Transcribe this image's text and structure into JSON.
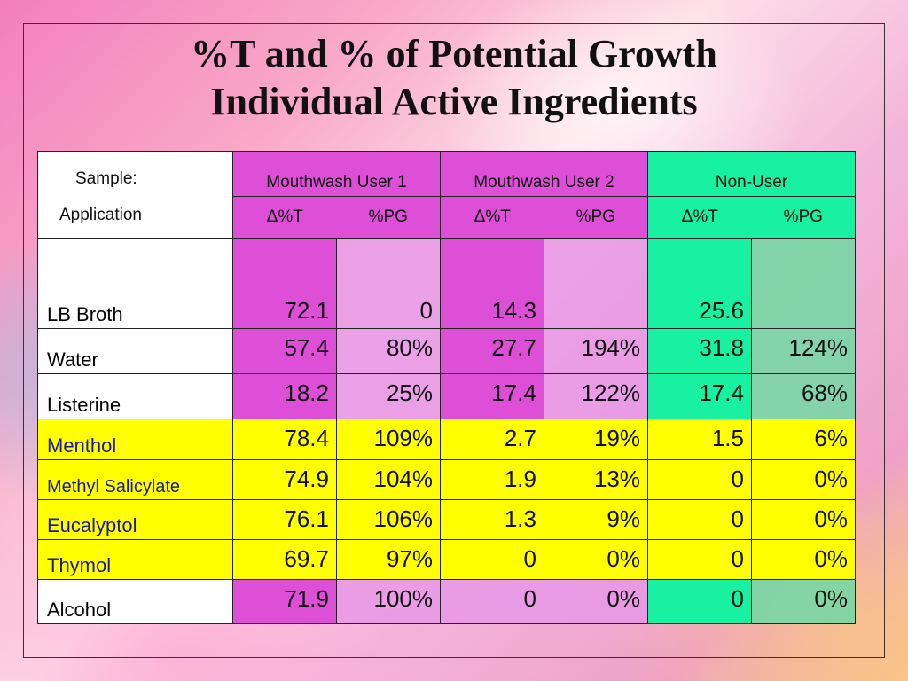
{
  "title": {
    "line1": "%T and % of Potential Growth",
    "line2": "Individual Active Ingredients"
  },
  "header": {
    "sample_label": "Sample:",
    "application_label": "Application",
    "groups": [
      "Mouthwash User 1",
      "Mouthwash User 2",
      "Non-User"
    ],
    "sub_cols": [
      "Δ%T",
      "%PG"
    ]
  },
  "rows": [
    {
      "name": "LB Broth",
      "values": [
        "72.1",
        "0",
        "14.3",
        "",
        "25.6",
        ""
      ]
    },
    {
      "name": "Water",
      "values": [
        "57.4",
        "80%",
        "27.7",
        "194%",
        "31.8",
        "124%"
      ]
    },
    {
      "name": "Listerine",
      "values": [
        "18.2",
        "25%",
        "17.4",
        "122%",
        "17.4",
        "68%"
      ]
    },
    {
      "name": "Menthol",
      "values": [
        "78.4",
        "109%",
        "2.7",
        "19%",
        "1.5",
        "6%"
      ]
    },
    {
      "name": "Methyl Salicylate",
      "values": [
        "74.9",
        "104%",
        "1.9",
        "13%",
        "0",
        "0%"
      ]
    },
    {
      "name": "Eucalyptol",
      "values": [
        "76.1",
        "106%",
        "1.3",
        "9%",
        "0",
        "0%"
      ]
    },
    {
      "name": "Thymol",
      "values": [
        "69.7",
        "97%",
        "0",
        "0%",
        "0",
        "0%"
      ]
    },
    {
      "name": "Alcohol",
      "values": [
        "71.9",
        "100%",
        "0",
        "0%",
        "0",
        "0%"
      ]
    }
  ],
  "colors": {
    "magenta": "#dd4fd6",
    "magenta_light": "#e896e6",
    "green": "#18f0a2",
    "green_light": "#78d7a5",
    "yellow": "#ffff00"
  }
}
